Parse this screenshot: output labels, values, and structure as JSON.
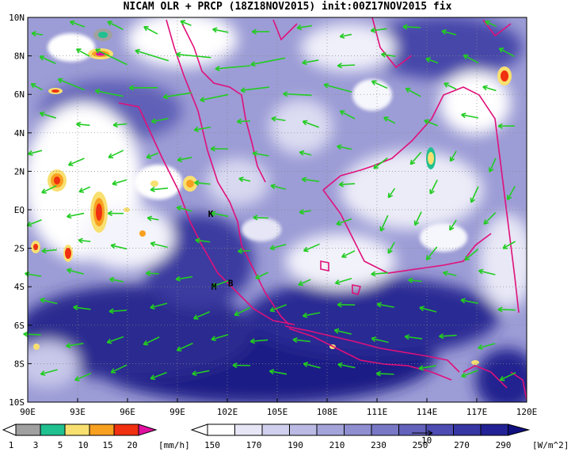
{
  "title": "NICAM OLR + PRCP (18Z18NOV2015) init:00Z17NOV2015 fix",
  "map": {
    "lon_range": [
      90,
      120
    ],
    "lat_range": [
      -10,
      10
    ],
    "lon_ticks": [
      "90E",
      "93E",
      "96E",
      "99E",
      "102E",
      "105E",
      "108E",
      "111E",
      "114E",
      "117E",
      "120E"
    ],
    "lat_ticks": [
      "10N",
      "8N",
      "6N",
      "4N",
      "2N",
      "EQ",
      "2S",
      "4S",
      "6S",
      "8S",
      "10S"
    ],
    "markers": [
      {
        "label": "K",
        "lon": 101.0,
        "lat": -0.2
      },
      {
        "label": "M",
        "lon": 101.2,
        "lat": -4.0
      },
      {
        "label": "B",
        "lon": 102.2,
        "lat": -3.8
      }
    ],
    "colors": {
      "olr_deep": "#1a1a80",
      "olr_mid": "#8080c8",
      "coastline": "#e0107a",
      "wind_vector": "#22cc22",
      "grid": "#888888"
    },
    "wind_reference_label": "10"
  },
  "precip_legend": {
    "levels": [
      "1",
      "3",
      "5",
      "10",
      "15",
      "20"
    ],
    "unit": "[mm/h]",
    "colors": [
      "#a0a0a0",
      "#20c090",
      "#f8e070",
      "#f8a020",
      "#f03010",
      "#e010a0"
    ]
  },
  "olr_legend": {
    "levels": [
      "150",
      "170",
      "190",
      "210",
      "230",
      "250",
      "270",
      "290"
    ],
    "unit": "[W/m^2]",
    "colors": [
      "#ffffff",
      "#e6e6f6",
      "#d0d0ee",
      "#babae4",
      "#a4a4da",
      "#8e8ed0",
      "#7878c6",
      "#6262bc",
      "#4c4cb2",
      "#3636a4",
      "#222296",
      "#101080"
    ]
  }
}
